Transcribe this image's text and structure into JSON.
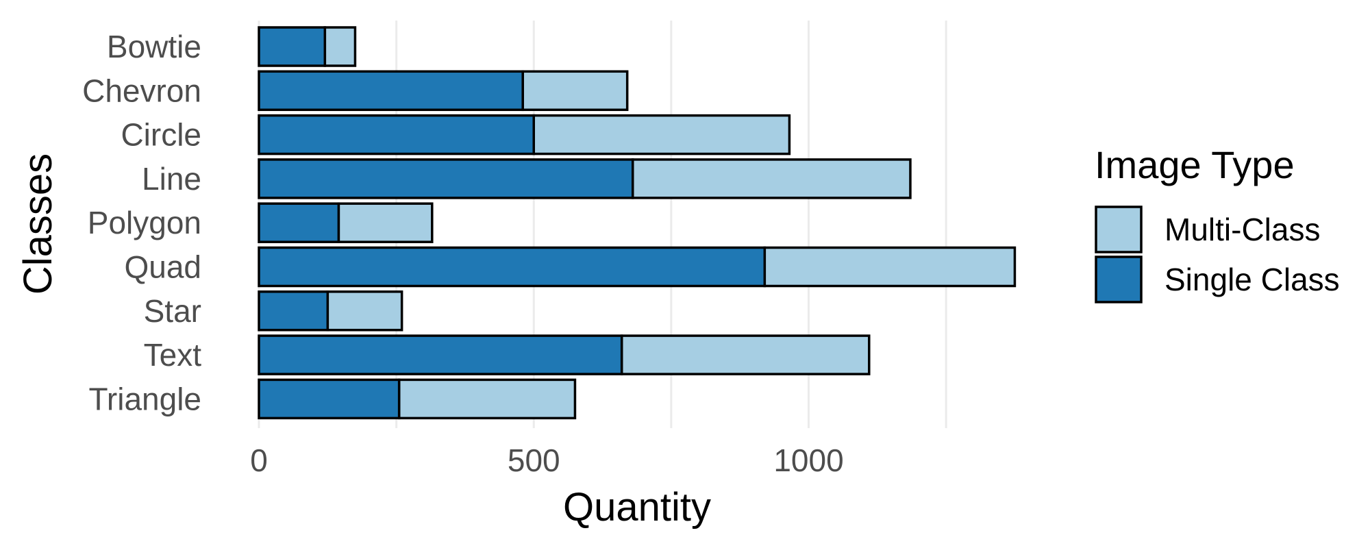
{
  "chart_data": {
    "type": "bar",
    "orientation": "horizontal",
    "stacked": true,
    "categories": [
      "Bowtie",
      "Chevron",
      "Circle",
      "Line",
      "Polygon",
      "Quad",
      "Star",
      "Text",
      "Triangle"
    ],
    "series": [
      {
        "name": "Single Class",
        "color": "#1f78b4",
        "values": [
          120,
          480,
          500,
          680,
          145,
          920,
          125,
          660,
          255
        ]
      },
      {
        "name": "Multi-Class",
        "color": "#a6cee3",
        "values": [
          55,
          190,
          465,
          505,
          170,
          455,
          135,
          450,
          320
        ]
      }
    ],
    "xlabel": "Quantity",
    "ylabel": "Classes",
    "xlim": [
      0,
      1400
    ],
    "xticks": [
      0,
      500,
      1000
    ],
    "grid": true,
    "legend": {
      "title": "Image Type",
      "position": "right",
      "entries": [
        "Multi-Class",
        "Single Class"
      ]
    }
  }
}
